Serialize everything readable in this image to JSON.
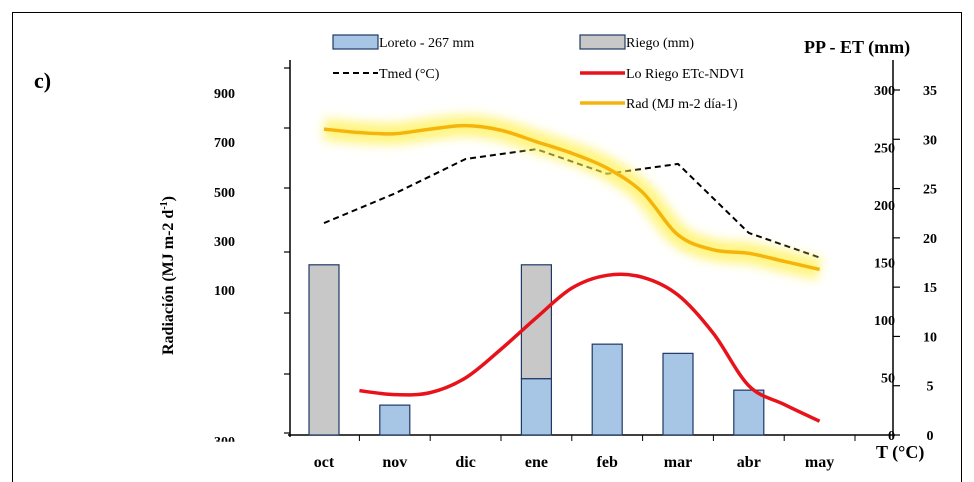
{
  "chart_data": {
    "type": "bar",
    "panel_label": "c)",
    "categories": [
      "oct",
      "nov",
      "dic",
      "ene",
      "feb",
      "mar",
      "abr",
      "may"
    ],
    "y_left_label": "Radiación (MJ m-2 d",
    "y_left_label_sup": "-1",
    "y_left_label_close": ")",
    "y_left_ticks": [
      "900",
      "700",
      "500",
      "300",
      "100",
      "-300"
    ],
    "y_right1_title": "PP - ET (mm)",
    "y_right1_ticks": [
      "0",
      "50",
      "100",
      "150",
      "200",
      "250",
      "300"
    ],
    "y_right1_range": [
      0,
      300
    ],
    "y_right2_label": "T (°C)",
    "y_right2_ticks": [
      "0",
      "5",
      "10",
      "15",
      "20",
      "25",
      "30",
      "35"
    ],
    "y_right2_range": [
      0,
      35
    ],
    "series": [
      {
        "name": "Loreto - 267 mm",
        "kind": "bar",
        "axis": "PP - ET (mm)",
        "color": "#a7c6e6",
        "values": [
          0,
          26,
          0,
          49,
          79,
          71,
          39,
          0
        ]
      },
      {
        "name": "Riego (mm)",
        "kind": "bar-stacked",
        "axis": "PP - ET (mm)",
        "color": "#c8c8c8",
        "values": [
          148,
          0,
          0,
          99,
          0,
          0,
          0,
          0
        ]
      },
      {
        "name": "Tmed (°C)",
        "kind": "line",
        "axis": "T (°C)",
        "color": "#000000",
        "dash": true,
        "x": [
          0,
          1,
          2,
          3,
          4,
          5,
          6,
          7
        ],
        "values": [
          21.5,
          24.5,
          28.0,
          29.0,
          26.5,
          27.5,
          20.5,
          18.0
        ]
      },
      {
        "name": "Lo Riego ETc-NDVI",
        "kind": "line",
        "axis": "T (°C)",
        "color": "#e8121a",
        "x": [
          0.5,
          1,
          1.5,
          2,
          2.5,
          3,
          3.5,
          4,
          4.5,
          5,
          5.5,
          6,
          6.5,
          7
        ],
        "values": [
          4.5,
          4.1,
          4.3,
          5.8,
          8.7,
          11.9,
          14.9,
          16.2,
          16.0,
          14.2,
          10.3,
          5.0,
          3.1,
          1.4
        ]
      },
      {
        "name": "Rad (MJ m-2 día-1)",
        "kind": "line",
        "axis": "PP - ET (mm)",
        "color": "#f5b40b",
        "x": [
          0,
          0.5,
          1,
          1.5,
          2,
          2.5,
          3,
          3.5,
          4,
          4.5,
          5,
          5.5,
          6,
          6.5,
          7
        ],
        "values": [
          266,
          263,
          262,
          266,
          269,
          265,
          255,
          245,
          232,
          211,
          174,
          161,
          158,
          151,
          144
        ]
      }
    ]
  }
}
